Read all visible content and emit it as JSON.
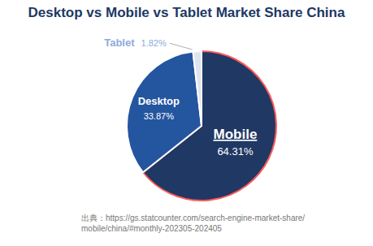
{
  "chart_data": {
    "type": "pie",
    "title": "Desktop vs Mobile vs Tablet Market Share China",
    "categories": [
      "Mobile",
      "Desktop",
      "Tablet"
    ],
    "values": [
      64.31,
      33.87,
      1.82
    ],
    "value_labels": [
      "64.31%",
      "33.87%",
      "1.82%"
    ],
    "data_labels": true,
    "colors": [
      "#203864",
      "#24559f",
      "#dfe4ee"
    ],
    "annotations": [
      "出典：https://gs.statcounter.com/search-engine-market-share/mobile/china/#monthly-202305-202405"
    ]
  }
}
